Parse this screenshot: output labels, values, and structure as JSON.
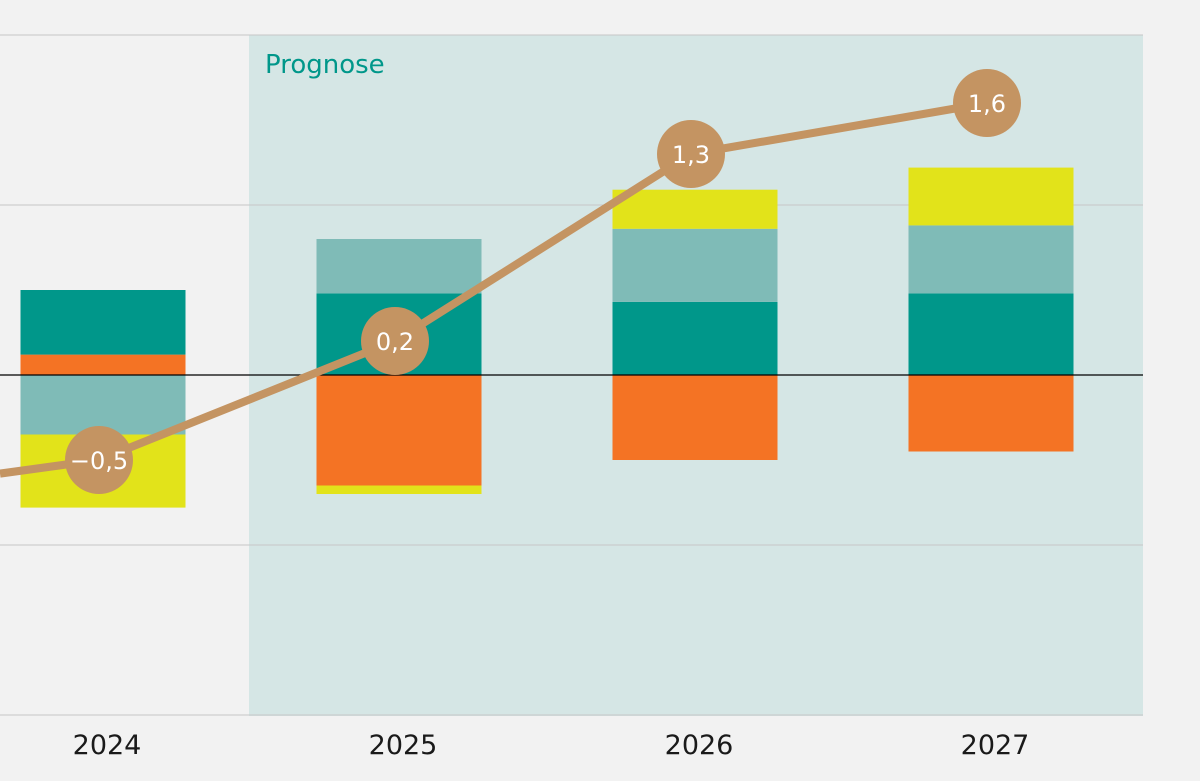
{
  "chart_data": {
    "type": "bar",
    "title": "",
    "xlabel": "",
    "ylabel": "",
    "ylim": [
      -2,
      2
    ],
    "grid": true,
    "categories": [
      "2024",
      "2025",
      "2026",
      "2027"
    ],
    "forecast": {
      "label": "Prognose",
      "from_category": "2025"
    },
    "series": [
      {
        "color": "#f47324",
        "values": [
          0.12,
          -0.65,
          -0.5,
          -0.45
        ]
      },
      {
        "color": "#00978a",
        "values": [
          0.38,
          0.48,
          0.43,
          0.48
        ]
      },
      {
        "color": "#7fbbb7",
        "values": [
          -0.35,
          0.32,
          0.43,
          0.4
        ]
      },
      {
        "color": "#e2e31a",
        "values": [
          -0.43,
          -0.05,
          0.23,
          0.34
        ]
      }
    ],
    "total_line": {
      "color": "#c49462",
      "values": [
        -0.5,
        0.2,
        1.3,
        1.6
      ],
      "labels": [
        "−0,5",
        "0,2",
        "1,3",
        "1,6"
      ]
    }
  }
}
